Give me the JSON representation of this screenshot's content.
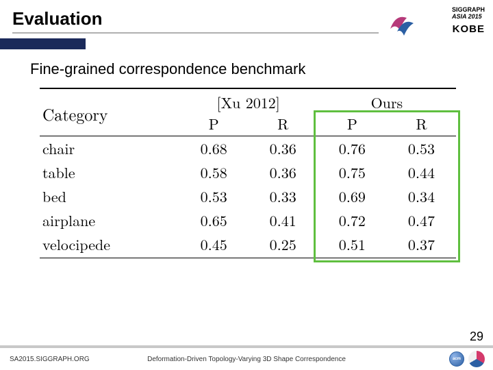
{
  "header": {
    "title": "Evaluation",
    "logo_line1": "SIGGRAPH",
    "logo_line2": "ASIA 2015",
    "logo_city": "KOBE"
  },
  "subtitle": "Fine-grained correspondence benchmark",
  "table": {
    "type": "table",
    "col_category": "Category",
    "method1": "[Xu 2012]",
    "method2": "Ours",
    "sub_P": "P",
    "sub_R": "R",
    "rows": [
      {
        "cat": "chair",
        "p1": "0.68",
        "r1": "0.36",
        "p2": "0.76",
        "r2": "0.53"
      },
      {
        "cat": "table",
        "p1": "0.58",
        "r1": "0.36",
        "p2": "0.75",
        "r2": "0.44"
      },
      {
        "cat": "bed",
        "p1": "0.53",
        "r1": "0.33",
        "p2": "0.69",
        "r2": "0.34"
      },
      {
        "cat": "airplane",
        "p1": "0.65",
        "r1": "0.41",
        "p2": "0.72",
        "r2": "0.47"
      },
      {
        "cat": "velocipede",
        "p1": "0.45",
        "r1": "0.25",
        "p2": "0.51",
        "r2": "0.37"
      }
    ],
    "highlight_color": "#5fbf3f",
    "font_family_serif": "Latin Modern Roman",
    "body_fontsize": 22,
    "bold_cols": [
      "p2",
      "r2"
    ]
  },
  "page_number": "29",
  "footer": {
    "left": "SA2015.SIGGRAPH.ORG",
    "center": "Deformation-Driven Topology-Varying 3D Shape Correspondence",
    "acm_text": "acm"
  },
  "colors": {
    "blue_bar": "#1b2a5a",
    "underline": "#b0b0b0",
    "pagenum_bar": "#c8c8c8",
    "highlight": "#5fbf3f",
    "logo_pink": "#d43a6b",
    "logo_blue": "#2b5fa3"
  }
}
